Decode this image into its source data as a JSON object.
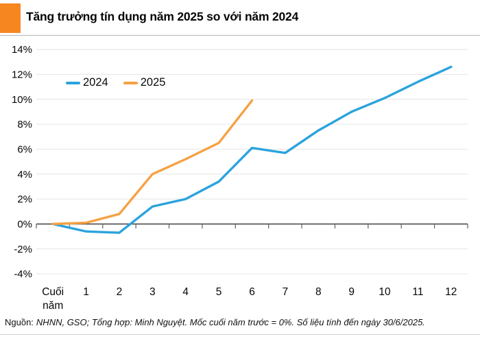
{
  "header": {
    "accent_color": "#F6861F"
  },
  "chart_data": {
    "type": "line",
    "title": "Tăng trưởng tín dụng năm 2025 so với năm 2024",
    "categories": [
      "Cuối năm",
      "1",
      "2",
      "3",
      "4",
      "5",
      "6",
      "7",
      "8",
      "9",
      "10",
      "11",
      "12"
    ],
    "series": [
      {
        "name": "2024",
        "color": "#2AA3DD",
        "values": [
          0,
          -0.6,
          -0.7,
          1.4,
          2.0,
          3.4,
          6.1,
          5.7,
          7.5,
          9.0,
          10.1,
          11.4,
          12.6
        ]
      },
      {
        "name": "2025",
        "color": "#F6A143",
        "values": [
          0,
          0.1,
          0.8,
          4.0,
          5.2,
          6.5,
          9.9,
          null,
          null,
          null,
          null,
          null,
          null
        ]
      }
    ],
    "xlabel": "",
    "ylabel": "",
    "ylim": [
      -4,
      14
    ],
    "ytick_step": 2,
    "ytick_suffix": "%",
    "grid": true,
    "legend_position": "top-left-inside",
    "baseline_value": 0
  },
  "footer": {
    "source_label": "Nguồn:",
    "source_text": "NHNN, GSO; Tổng hợp: Minh Nguyệt. Mốc cuối năm trước = 0%. Số liệu tính đến ngày 30/6/2025."
  }
}
